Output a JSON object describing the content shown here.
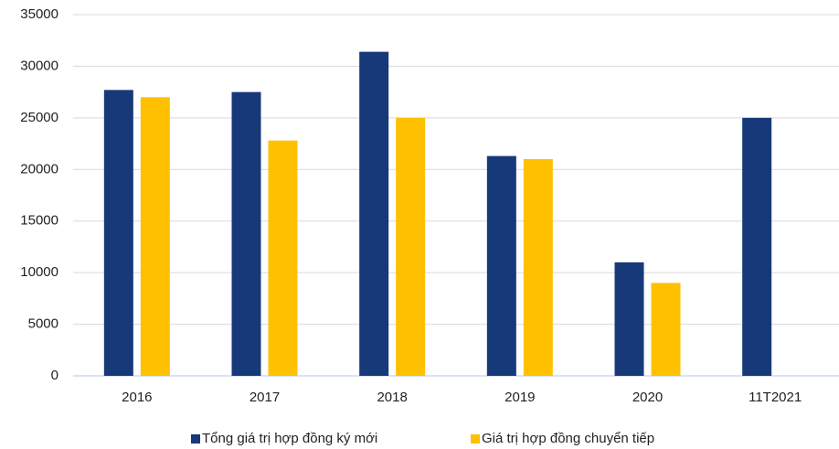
{
  "chart_data": {
    "type": "bar",
    "categories": [
      "2016",
      "2017",
      "2018",
      "2019",
      "2020",
      "11T2021"
    ],
    "series": [
      {
        "name": "Tổng giá trị hợp đồng ký mới",
        "color": "#17397a",
        "values": [
          27700,
          27500,
          31400,
          21300,
          11000,
          25000
        ]
      },
      {
        "name": "Giá trị hợp đồng chuyển tiếp",
        "color": "#ffc000",
        "values": [
          27000,
          22800,
          25000,
          21000,
          9000,
          null
        ]
      }
    ],
    "ylim": [
      0,
      35000
    ],
    "yticks": [
      0,
      5000,
      10000,
      15000,
      20000,
      25000,
      30000,
      35000
    ],
    "grid": true,
    "legend": "bottom"
  }
}
